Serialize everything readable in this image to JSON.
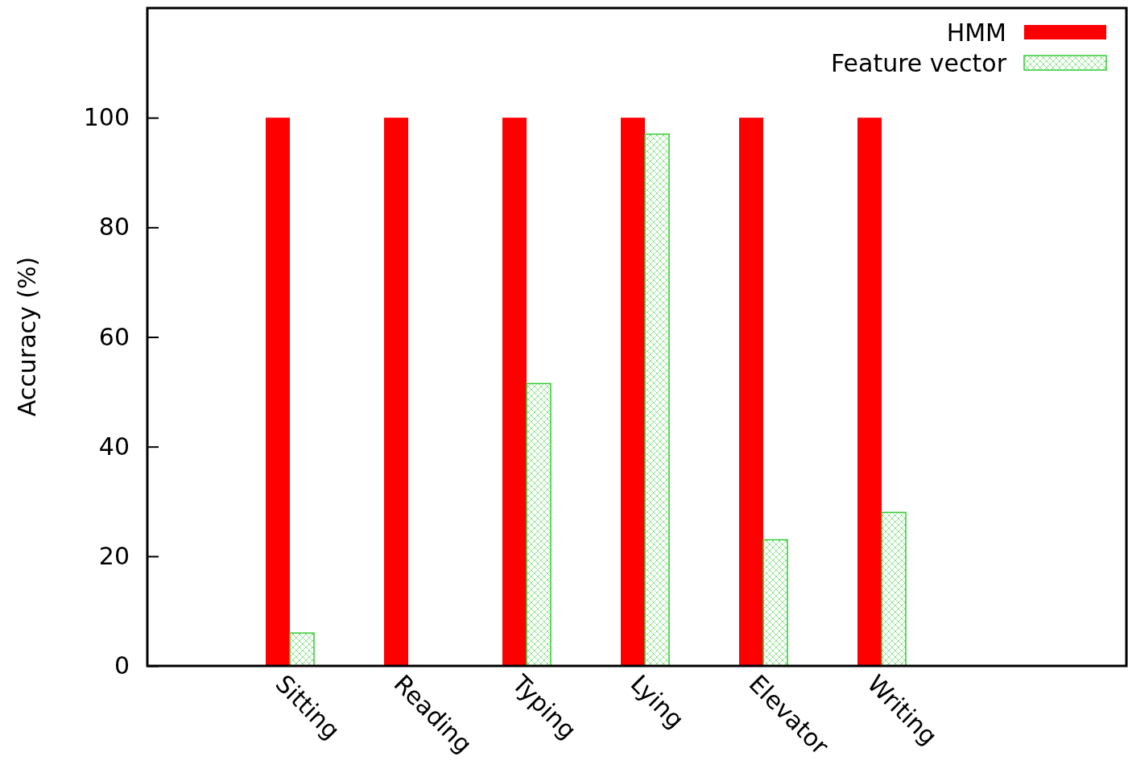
{
  "chart_data": {
    "type": "bar",
    "ylabel": "Accuracy (%)",
    "categories": [
      "Sitting",
      "Reading",
      "Typing",
      "Lying",
      "Elevator",
      "Writing"
    ],
    "series": [
      {
        "name": "HMM",
        "color": "#ff0000",
        "values": [
          100,
          100,
          100,
          100,
          100,
          100
        ]
      },
      {
        "name": "Feature vector",
        "color": "#33cc33",
        "values": [
          6,
          0,
          51.5,
          97,
          23,
          28
        ]
      }
    ],
    "ylim": [
      0,
      120
    ],
    "yticks": [
      0,
      20,
      40,
      60,
      80,
      100
    ],
    "legend": "top right",
    "grid": false
  }
}
